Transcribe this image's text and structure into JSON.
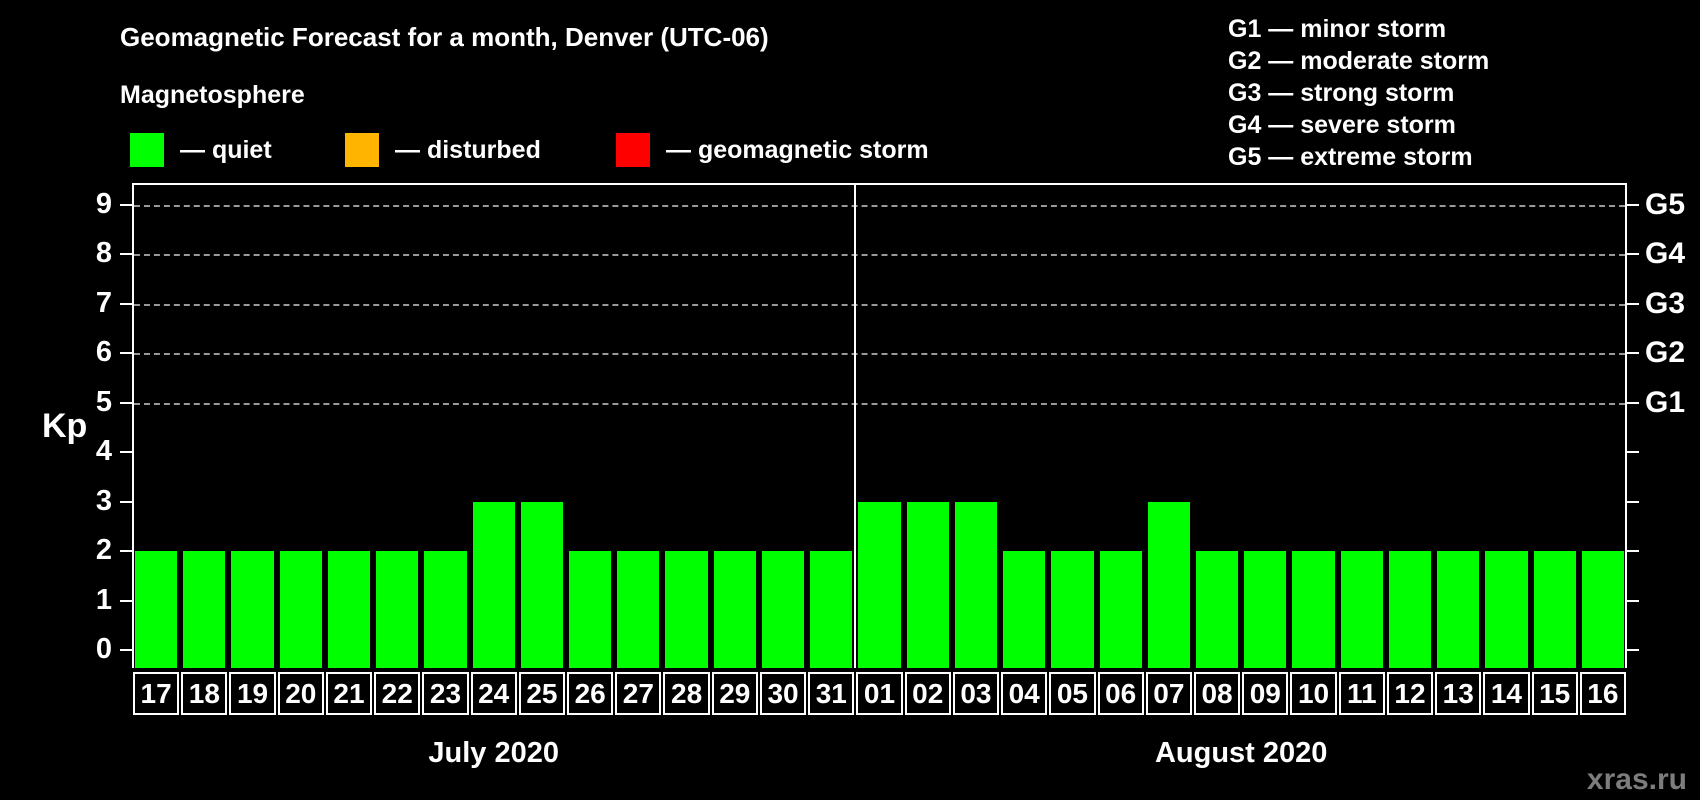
{
  "title": "Geomagnetic Forecast for a month, Denver (UTC-06)",
  "subtitle": "Magnetosphere",
  "mag_legend": [
    {
      "name": "quiet",
      "label": "— quiet",
      "color": "#00ff00"
    },
    {
      "name": "disturbed",
      "label": "— disturbed",
      "color": "#ffb400"
    },
    {
      "name": "geomagnetic-storm",
      "label": "— geomagnetic storm",
      "color": "#ff0000"
    }
  ],
  "g_legend": [
    "G1 — minor storm",
    "G2 — moderate storm",
    "G3 — strong storm",
    "G4 — severe storm",
    "G5 — extreme storm"
  ],
  "watermark": "xras.ru",
  "chart_data": {
    "type": "bar",
    "ylabel": "Kp",
    "ylim": [
      -0.37,
      9.42
    ],
    "y_ticks": [
      0,
      1,
      2,
      3,
      4,
      5,
      6,
      7,
      8,
      9
    ],
    "right_axis_labels": [
      {
        "kp": 5,
        "label": "G1"
      },
      {
        "kp": 6,
        "label": "G2"
      },
      {
        "kp": 7,
        "label": "G3"
      },
      {
        "kp": 8,
        "label": "G4"
      },
      {
        "kp": 9,
        "label": "G5"
      }
    ],
    "gridlines_at": [
      5,
      6,
      7,
      8,
      9
    ],
    "grid": true,
    "bar_color": "#00ff00",
    "months": [
      {
        "label": "July 2020",
        "days": [
          "17",
          "18",
          "19",
          "20",
          "21",
          "22",
          "23",
          "24",
          "25",
          "26",
          "27",
          "28",
          "29",
          "30",
          "31"
        ],
        "values": [
          2,
          2,
          2,
          2,
          2,
          2,
          2,
          3,
          3,
          2,
          2,
          2,
          2,
          2,
          2
        ]
      },
      {
        "label": "August 2020",
        "days": [
          "01",
          "02",
          "03",
          "04",
          "05",
          "06",
          "07",
          "08",
          "09",
          "10",
          "11",
          "12",
          "13",
          "14",
          "15",
          "16"
        ],
        "values": [
          3,
          3,
          3,
          2,
          2,
          2,
          3,
          2,
          2,
          2,
          2,
          2,
          2,
          2,
          2,
          2
        ]
      }
    ]
  }
}
